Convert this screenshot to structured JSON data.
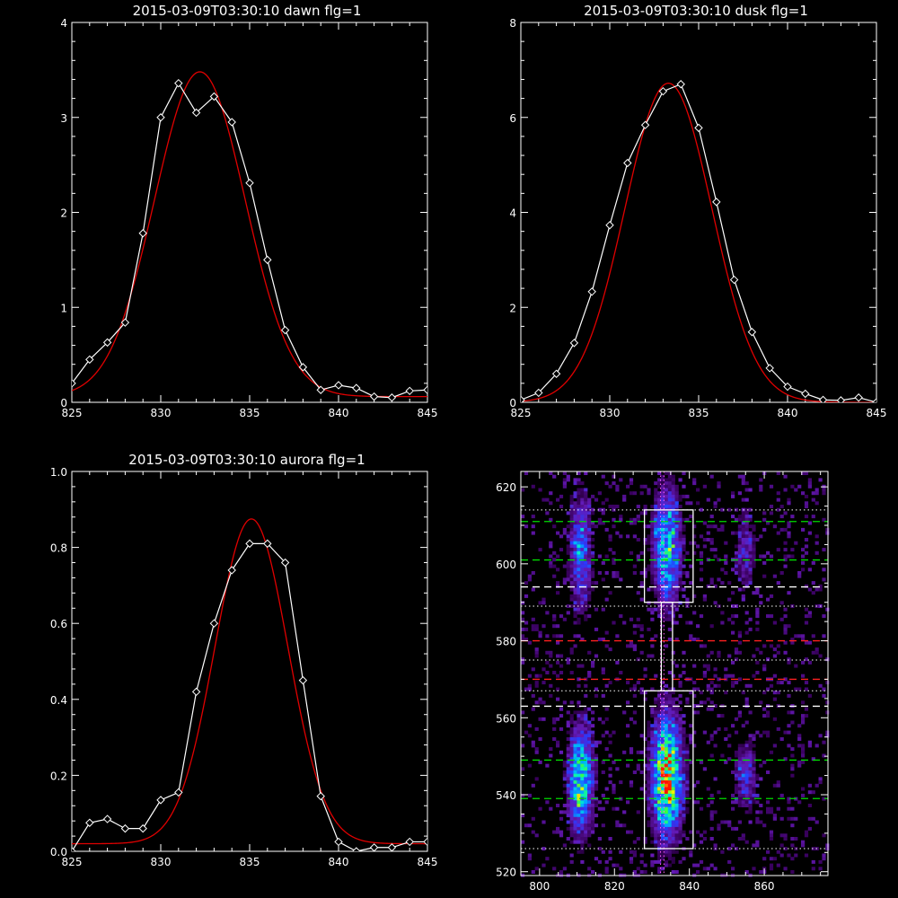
{
  "colors": {
    "background": "#000000",
    "axes": "#ffffff",
    "data": "#ffffff",
    "fit": "#e00000",
    "green_dash": "#00dd00",
    "red_dash": "#ff2020",
    "box": "#ffffff",
    "cmap": "rainbow (purple-blue-cyan-green-yellow-red)"
  },
  "chart_data": [
    {
      "id": "dawn",
      "type": "line",
      "title": "2015-03-09T03:30:10 dawn flg=1",
      "xlabel": "",
      "ylabel": "",
      "xlim": [
        825,
        845
      ],
      "ylim": [
        0,
        4
      ],
      "xticks": [
        825,
        830,
        835,
        840,
        845
      ],
      "yticks": [
        0,
        1,
        2,
        3,
        4
      ],
      "grid": false,
      "series": [
        {
          "kind": "data",
          "marker": "diamond",
          "x": [
            825,
            826,
            827,
            828,
            829,
            830,
            831,
            832,
            833,
            834,
            835,
            836,
            837,
            838,
            839,
            840,
            841,
            842,
            843,
            844,
            845
          ],
          "y": [
            0.2,
            0.45,
            0.63,
            0.84,
            1.78,
            3.0,
            3.36,
            3.05,
            3.22,
            2.95,
            2.31,
            1.5,
            0.76,
            0.37,
            0.13,
            0.18,
            0.15,
            0.06,
            0.05,
            0.12,
            0.13
          ]
        },
        {
          "kind": "fit",
          "shape": "gaussian",
          "amplitude": 3.42,
          "center": 832.2,
          "sigma": 2.55,
          "offset": 0.06
        }
      ]
    },
    {
      "id": "dusk",
      "type": "line",
      "title": "2015-03-09T03:30:10 dusk flg=1",
      "xlabel": "",
      "ylabel": "",
      "xlim": [
        825,
        845
      ],
      "ylim": [
        0,
        8
      ],
      "xticks": [
        825,
        830,
        835,
        840,
        845
      ],
      "yticks": [
        0,
        2,
        4,
        6,
        8
      ],
      "grid": false,
      "series": [
        {
          "kind": "data",
          "marker": "diamond",
          "x": [
            825,
            826,
            827,
            828,
            829,
            830,
            831,
            832,
            833,
            834,
            835,
            836,
            837,
            838,
            839,
            840,
            841,
            842,
            843,
            844,
            845
          ],
          "y": [
            0.05,
            0.2,
            0.6,
            1.25,
            2.33,
            3.73,
            5.04,
            5.84,
            6.55,
            6.7,
            5.78,
            4.22,
            2.58,
            1.48,
            0.72,
            0.33,
            0.18,
            0.05,
            0.04,
            0.1,
            0.0
          ]
        },
        {
          "kind": "fit",
          "shape": "gaussian",
          "amplitude": 6.72,
          "center": 833.3,
          "sigma": 2.45,
          "offset": 0.0
        }
      ]
    },
    {
      "id": "aurora",
      "type": "line",
      "title": "2015-03-09T03:30:10 aurora flg=1",
      "xlabel": "",
      "ylabel": "",
      "xlim": [
        825,
        845
      ],
      "ylim": [
        0,
        1.0
      ],
      "xticks": [
        825,
        830,
        835,
        840,
        845
      ],
      "yticks": [
        0.0,
        0.2,
        0.4,
        0.6,
        0.8,
        1.0
      ],
      "grid": false,
      "series": [
        {
          "kind": "data",
          "marker": "diamond",
          "x": [
            825,
            826,
            827,
            828,
            829,
            830,
            831,
            832,
            833,
            834,
            835,
            836,
            837,
            838,
            839,
            840,
            841,
            842,
            843,
            844,
            845
          ],
          "y": [
            0.0,
            0.075,
            0.085,
            0.06,
            0.06,
            0.135,
            0.155,
            0.42,
            0.6,
            0.74,
            0.81,
            0.81,
            0.76,
            0.45,
            0.145,
            0.025,
            0.0,
            0.01,
            0.01,
            0.025,
            0.025
          ]
        },
        {
          "kind": "fit",
          "shape": "gaussian",
          "amplitude": 0.855,
          "center": 835.1,
          "sigma": 2.05,
          "offset": 0.02
        }
      ]
    },
    {
      "id": "image",
      "type": "heatmap",
      "title": "",
      "xlabel": "",
      "ylabel": "",
      "xlim": [
        795,
        877
      ],
      "ylim": [
        519,
        624
      ],
      "xticks": [
        800,
        820,
        840,
        860
      ],
      "yticks": [
        520,
        540,
        560,
        580,
        600,
        620
      ],
      "grid": false,
      "clusters": [
        {
          "x": 811,
          "y": 544,
          "sx": 2.2,
          "sy": 9,
          "peak": 0.72
        },
        {
          "x": 811,
          "y": 603,
          "sx": 2.0,
          "sy": 10,
          "peak": 0.42
        },
        {
          "x": 834,
          "y": 545,
          "sx": 2.6,
          "sy": 10,
          "peak": 1.0
        },
        {
          "x": 834,
          "y": 604,
          "sx": 2.4,
          "sy": 10,
          "peak": 0.62
        },
        {
          "x": 855,
          "y": 545,
          "sx": 2.0,
          "sy": 6,
          "peak": 0.3
        },
        {
          "x": 855,
          "y": 603,
          "sx": 2.0,
          "sy": 8,
          "peak": 0.22
        }
      ],
      "vlines": [
        {
          "x": 832.3,
          "style": "dotted",
          "color": "#ff5fff"
        },
        {
          "x": 833.2,
          "style": "dotted",
          "color": "#ff5fff"
        }
      ],
      "hlines": [
        {
          "y": 611,
          "style": "dashed",
          "color": "#00dd00"
        },
        {
          "y": 601,
          "style": "dashed",
          "color": "#00dd00"
        },
        {
          "y": 549,
          "style": "dashed",
          "color": "#00dd00"
        },
        {
          "y": 539,
          "style": "dashed",
          "color": "#00dd00"
        },
        {
          "y": 594,
          "style": "dashed",
          "color": "#ffffff"
        },
        {
          "y": 563,
          "style": "dashed",
          "color": "#ffffff"
        },
        {
          "y": 580,
          "style": "dashed",
          "color": "#ff2020"
        },
        {
          "y": 570,
          "style": "dashed",
          "color": "#ff2020"
        },
        {
          "y": 614,
          "style": "dotted",
          "color": "#ffffff"
        },
        {
          "y": 589,
          "style": "dotted",
          "color": "#ffffff"
        },
        {
          "y": 575,
          "style": "dotted",
          "color": "#ffffff"
        },
        {
          "y": 567,
          "style": "dotted",
          "color": "#ffffff"
        },
        {
          "y": 526,
          "style": "dotted",
          "color": "#ffffff"
        }
      ],
      "boxes": [
        {
          "x0": 828,
          "x1": 841,
          "y0": 590,
          "y1": 614
        },
        {
          "x0": 828,
          "x1": 841,
          "y0": 526,
          "y1": 567
        },
        {
          "x0": 832.5,
          "x1": 835.5,
          "y0": 567,
          "y1": 590
        }
      ]
    }
  ]
}
